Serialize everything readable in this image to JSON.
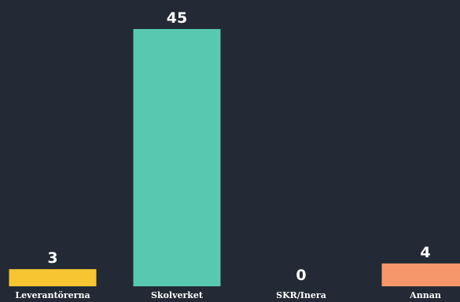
{
  "chart_data": {
    "type": "bar",
    "categories": [
      "Leverantörerna",
      "Skolverket",
      "SKR/Inera",
      "Annan"
    ],
    "values": [
      3,
      45,
      0,
      4
    ],
    "value_labels": [
      "3",
      "45",
      "0",
      "4"
    ],
    "colors": [
      "#f7c531",
      "#58c8b1",
      "#58c8b1",
      "#f5976a"
    ],
    "ylim": [
      0,
      45
    ],
    "grid": false,
    "legend": "none",
    "background": "#232a35"
  }
}
